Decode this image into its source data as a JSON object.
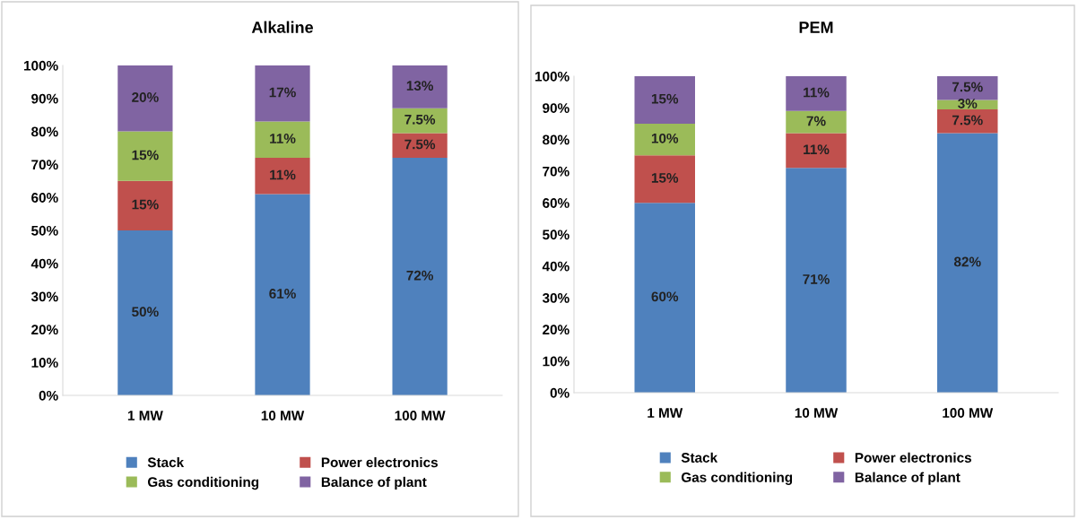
{
  "chart_data": [
    {
      "type": "bar",
      "title": "Alkaline",
      "stacked": true,
      "categories": [
        "1 MW",
        "10 MW",
        "100 MW"
      ],
      "ylim": [
        0,
        100
      ],
      "yticks": [
        {
          "value": 0,
          "label": "0%"
        },
        {
          "value": 10,
          "label": "10%"
        },
        {
          "value": 20,
          "label": "20%"
        },
        {
          "value": 30,
          "label": "30%"
        },
        {
          "value": 40,
          "label": "40%"
        },
        {
          "value": 50,
          "label": "50%"
        },
        {
          "value": 60,
          "label": "60%"
        },
        {
          "value": 70,
          "label": "70%"
        },
        {
          "value": 80,
          "label": "80%"
        },
        {
          "value": 90,
          "label": "90%"
        },
        {
          "value": 100,
          "label": "100%"
        }
      ],
      "grid": false,
      "legend": "bottom",
      "series": [
        {
          "name": "Stack",
          "color": "#4f81bd",
          "values": [
            50,
            61,
            72
          ],
          "value_labels": [
            "50%",
            "61%",
            "72%"
          ]
        },
        {
          "name": "Power electronics",
          "color": "#c0504d",
          "values": [
            15,
            11,
            7.5
          ],
          "value_labels": [
            "15%",
            "11%",
            "7.5%"
          ]
        },
        {
          "name": "Gas conditioning",
          "color": "#9bbb59",
          "values": [
            15,
            11,
            7.5
          ],
          "value_labels": [
            "15%",
            "11%",
            "7.5%"
          ]
        },
        {
          "name": "Balance of plant",
          "color": "#8064a2",
          "values": [
            20,
            17,
            13
          ],
          "value_labels": [
            "20%",
            "17%",
            "13%"
          ]
        }
      ]
    },
    {
      "type": "bar",
      "title": "PEM",
      "stacked": true,
      "categories": [
        "1 MW",
        "10 MW",
        "100 MW"
      ],
      "ylim": [
        0,
        100
      ],
      "yticks": [
        {
          "value": 0,
          "label": "0%"
        },
        {
          "value": 10,
          "label": "10%"
        },
        {
          "value": 20,
          "label": "20%"
        },
        {
          "value": 30,
          "label": "30%"
        },
        {
          "value": 40,
          "label": "40%"
        },
        {
          "value": 50,
          "label": "50%"
        },
        {
          "value": 60,
          "label": "60%"
        },
        {
          "value": 70,
          "label": "70%"
        },
        {
          "value": 80,
          "label": "80%"
        },
        {
          "value": 90,
          "label": "90%"
        },
        {
          "value": 100,
          "label": "100%"
        }
      ],
      "grid": false,
      "legend": "bottom",
      "series": [
        {
          "name": "Stack",
          "color": "#4f81bd",
          "values": [
            60,
            71,
            82
          ],
          "value_labels": [
            "60%",
            "71%",
            "82%"
          ]
        },
        {
          "name": "Power electronics",
          "color": "#c0504d",
          "values": [
            15,
            11,
            7.5
          ],
          "value_labels": [
            "15%",
            "11%",
            "7.5%"
          ]
        },
        {
          "name": "Gas conditioning",
          "color": "#9bbb59",
          "values": [
            10,
            7,
            3
          ],
          "value_labels": [
            "10%",
            "7%",
            "3%"
          ]
        },
        {
          "name": "Balance of plant",
          "color": "#8064a2",
          "values": [
            15,
            11,
            7.5
          ],
          "value_labels": [
            "15%",
            "11%",
            "7.5%"
          ]
        }
      ]
    }
  ]
}
